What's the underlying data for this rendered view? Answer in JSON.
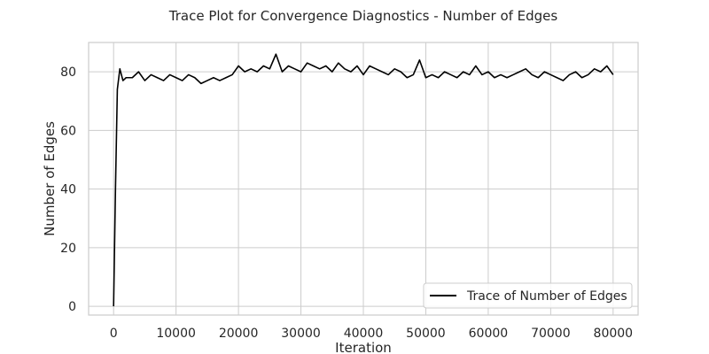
{
  "chart_data": {
    "type": "line",
    "title": "Trace Plot for Convergence Diagnostics - Number of Edges",
    "xlabel": "Iteration",
    "ylabel": "Number of Edges",
    "xlim": [
      -4000,
      84000
    ],
    "ylim": [
      -3,
      90
    ],
    "xticks": [
      0,
      10000,
      20000,
      30000,
      40000,
      50000,
      60000,
      70000,
      80000
    ],
    "xtick_labels": [
      "0",
      "10000",
      "20000",
      "30000",
      "40000",
      "50000",
      "60000",
      "70000",
      "80000"
    ],
    "yticks": [
      0,
      20,
      40,
      60,
      80
    ],
    "ytick_labels": [
      "0",
      "20",
      "40",
      "60",
      "80"
    ],
    "grid": true,
    "legend": {
      "position": "lower-right"
    },
    "series": [
      {
        "name": "Trace of Number of Edges",
        "color": "#000000",
        "x": [
          0,
          300,
          600,
          1000,
          1500,
          2000,
          3000,
          4000,
          5000,
          6000,
          7000,
          8000,
          9000,
          10000,
          11000,
          12000,
          13000,
          14000,
          15000,
          16000,
          17000,
          18000,
          19000,
          20000,
          21000,
          22000,
          23000,
          24000,
          25000,
          26000,
          27000,
          28000,
          29000,
          30000,
          31000,
          32000,
          33000,
          34000,
          35000,
          36000,
          37000,
          38000,
          39000,
          40000,
          41000,
          42000,
          43000,
          44000,
          45000,
          46000,
          47000,
          48000,
          49000,
          50000,
          51000,
          52000,
          53000,
          54000,
          55000,
          56000,
          57000,
          58000,
          59000,
          60000,
          61000,
          62000,
          63000,
          64000,
          65000,
          66000,
          67000,
          68000,
          69000,
          70000,
          71000,
          72000,
          73000,
          74000,
          75000,
          76000,
          77000,
          78000,
          79000,
          80000
        ],
        "values": [
          0,
          40,
          74,
          81,
          77,
          78,
          78,
          80,
          77,
          79,
          78,
          77,
          79,
          78,
          77,
          79,
          78,
          76,
          77,
          78,
          77,
          78,
          79,
          82,
          80,
          81,
          80,
          82,
          81,
          86,
          80,
          82,
          81,
          80,
          83,
          82,
          81,
          82,
          80,
          83,
          81,
          80,
          82,
          79,
          82,
          81,
          80,
          79,
          81,
          80,
          78,
          79,
          84,
          78,
          79,
          78,
          80,
          79,
          78,
          80,
          79,
          82,
          79,
          80,
          78,
          79,
          78,
          79,
          80,
          81,
          79,
          78,
          80,
          79,
          78,
          77,
          79,
          80,
          78,
          79,
          81,
          80,
          82,
          79
        ]
      }
    ]
  }
}
